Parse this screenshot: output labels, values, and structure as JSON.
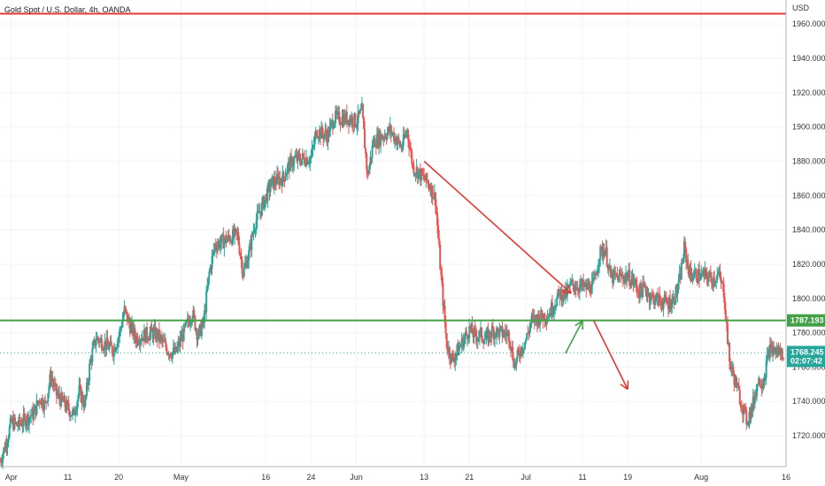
{
  "chart_data": {
    "type": "candlestick",
    "title": "Gold Spot / U.S. Dollar, 4h, OANDA",
    "currency": "USD",
    "ylim": [
      1702,
      1974
    ],
    "y_ticks": [
      1720,
      1740,
      1760,
      1780,
      1800,
      1820,
      1840,
      1860,
      1880,
      1900,
      1920,
      1940,
      1960
    ],
    "y_tick_labels": [
      "1720.000",
      "1740.000",
      "1760.000",
      "1780.000",
      "1800.000",
      "1820.000",
      "1840.000",
      "1860.000",
      "1880.000",
      "1900.000",
      "1920.000",
      "1940.000",
      "1960.000"
    ],
    "x_ticks": [
      {
        "label": "Apr",
        "date": "2021-04-01"
      },
      {
        "label": "11",
        "date": "2021-04-11"
      },
      {
        "label": "20",
        "date": "2021-04-20"
      },
      {
        "label": "May",
        "date": "2021-05-01"
      },
      {
        "label": "16",
        "date": "2021-05-16"
      },
      {
        "label": "24",
        "date": "2021-05-24"
      },
      {
        "label": "Jun",
        "date": "2021-06-01"
      },
      {
        "label": "13",
        "date": "2021-06-13"
      },
      {
        "label": "21",
        "date": "2021-06-21"
      },
      {
        "label": "Jul",
        "date": "2021-07-01"
      },
      {
        "label": "11",
        "date": "2021-07-11"
      },
      {
        "label": "19",
        "date": "2021-07-19"
      },
      {
        "label": "Aug",
        "date": "2021-08-01"
      },
      {
        "label": "16",
        "date": "2021-08-16"
      }
    ],
    "xlim": [
      "2021-03-30",
      "2021-08-16"
    ],
    "price_path": [
      [
        "2021-03-30",
        1705
      ],
      [
        "2021-03-31",
        1715
      ],
      [
        "2021-04-01",
        1728
      ],
      [
        "2021-04-02",
        1726
      ],
      [
        "2021-04-05",
        1733
      ],
      [
        "2021-04-06",
        1742
      ],
      [
        "2021-04-07",
        1738
      ],
      [
        "2021-04-08",
        1755
      ],
      [
        "2021-04-09",
        1744
      ],
      [
        "2021-04-12",
        1732
      ],
      [
        "2021-04-13",
        1746
      ],
      [
        "2021-04-14",
        1738
      ],
      [
        "2021-04-15",
        1764
      ],
      [
        "2021-04-16",
        1777
      ],
      [
        "2021-04-19",
        1770
      ],
      [
        "2021-04-20",
        1778
      ],
      [
        "2021-04-21",
        1793
      ],
      [
        "2021-04-22",
        1784
      ],
      [
        "2021-04-23",
        1777
      ],
      [
        "2021-04-26",
        1780
      ],
      [
        "2021-04-27",
        1778
      ],
      [
        "2021-04-28",
        1773
      ],
      [
        "2021-04-29",
        1769
      ],
      [
        "2021-04-30",
        1768
      ],
      [
        "2021-05-03",
        1792
      ],
      [
        "2021-05-04",
        1778
      ],
      [
        "2021-05-05",
        1786
      ],
      [
        "2021-05-06",
        1815
      ],
      [
        "2021-05-07",
        1831
      ],
      [
        "2021-05-10",
        1836
      ],
      [
        "2021-05-11",
        1837
      ],
      [
        "2021-05-12",
        1815
      ],
      [
        "2021-05-13",
        1826
      ],
      [
        "2021-05-14",
        1843
      ],
      [
        "2021-05-17",
        1867
      ],
      [
        "2021-05-18",
        1869
      ],
      [
        "2021-05-19",
        1870
      ],
      [
        "2021-05-20",
        1877
      ],
      [
        "2021-05-21",
        1881
      ],
      [
        "2021-05-24",
        1882
      ],
      [
        "2021-05-25",
        1898
      ],
      [
        "2021-05-26",
        1896
      ],
      [
        "2021-05-27",
        1895
      ],
      [
        "2021-05-28",
        1905
      ],
      [
        "2021-05-31",
        1905
      ],
      [
        "2021-06-01",
        1903
      ],
      [
        "2021-06-02",
        1909
      ],
      [
        "2021-06-03",
        1871
      ],
      [
        "2021-06-04",
        1891
      ],
      [
        "2021-06-07",
        1898
      ],
      [
        "2021-06-08",
        1893
      ],
      [
        "2021-06-09",
        1888
      ],
      [
        "2021-06-10",
        1898
      ],
      [
        "2021-06-11",
        1877
      ],
      [
        "2021-06-14",
        1866
      ],
      [
        "2021-06-15",
        1858
      ],
      [
        "2021-06-16",
        1812
      ],
      [
        "2021-06-17",
        1773
      ],
      [
        "2021-06-18",
        1764
      ],
      [
        "2021-06-21",
        1782
      ],
      [
        "2021-06-22",
        1778
      ],
      [
        "2021-06-23",
        1779
      ],
      [
        "2021-06-24",
        1776
      ],
      [
        "2021-06-25",
        1781
      ],
      [
        "2021-06-28",
        1779
      ],
      [
        "2021-06-29",
        1761
      ],
      [
        "2021-06-30",
        1770
      ],
      [
        "2021-07-01",
        1776
      ],
      [
        "2021-07-02",
        1787
      ],
      [
        "2021-07-05",
        1791
      ],
      [
        "2021-07-06",
        1797
      ],
      [
        "2021-07-07",
        1803
      ],
      [
        "2021-07-08",
        1802
      ],
      [
        "2021-07-09",
        1808
      ],
      [
        "2021-07-12",
        1806
      ],
      [
        "2021-07-13",
        1808
      ],
      [
        "2021-07-14",
        1826
      ],
      [
        "2021-07-15",
        1829
      ],
      [
        "2021-07-16",
        1812
      ],
      [
        "2021-07-19",
        1813
      ],
      [
        "2021-07-20",
        1810
      ],
      [
        "2021-07-21",
        1804
      ],
      [
        "2021-07-22",
        1806
      ],
      [
        "2021-07-23",
        1801
      ],
      [
        "2021-07-26",
        1797
      ],
      [
        "2021-07-27",
        1799
      ],
      [
        "2021-07-28",
        1807
      ],
      [
        "2021-07-29",
        1829
      ],
      [
        "2021-07-30",
        1814
      ],
      [
        "2021-08-02",
        1813
      ],
      [
        "2021-08-03",
        1811
      ],
      [
        "2021-08-04",
        1814
      ],
      [
        "2021-08-05",
        1804
      ],
      [
        "2021-08-06",
        1763
      ],
      [
        "2021-08-09",
        1729
      ],
      [
        "2021-08-10",
        1736
      ],
      [
        "2021-08-11",
        1752
      ],
      [
        "2021-08-12",
        1752
      ],
      [
        "2021-08-13",
        1770
      ],
      [
        "2021-08-16",
        1768
      ]
    ],
    "resistance_level": 1966,
    "support_level": 1787.193,
    "support_label": "1787.193",
    "last_price": 1768.245,
    "last_price_label": "1768.245",
    "countdown_label": "02:07:42",
    "trendline": {
      "from": [
        "2021-06-13",
        1880
      ],
      "to": [
        "2021-07-09",
        1803
      ]
    },
    "annotations": [
      {
        "type": "arrow",
        "color": "#e53935",
        "from": [
          "2021-06-13",
          1880
        ],
        "to": [
          "2021-07-09",
          1803
        ],
        "name": "descending-trendline"
      },
      {
        "type": "arrow",
        "color": "#43a047",
        "from": [
          "2021-07-08",
          1768
        ],
        "to": [
          "2021-07-11",
          1787
        ],
        "name": "retest-arrow"
      },
      {
        "type": "arrow",
        "color": "#e53935",
        "from": [
          "2021-07-13",
          1787
        ],
        "to": [
          "2021-07-19",
          1747
        ],
        "name": "drop-arrow"
      }
    ],
    "colors": {
      "up": "#26a69a",
      "down": "#ef5350",
      "resistance": "#e53935",
      "support": "#43a047",
      "last_price": "#26a69a",
      "grid": "#f0f3fa",
      "axis": "#b2b5be"
    },
    "grid": true
  }
}
